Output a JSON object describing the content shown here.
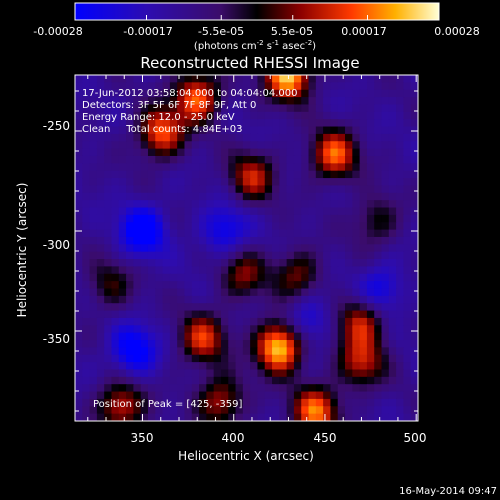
{
  "chart_data": {
    "type": "heatmap",
    "title": "Reconstructed RHESSI Image",
    "xlabel": "Heliocentric X (arcsec)",
    "ylabel": "Heliocentric Y (arcsec)",
    "xlim": [
      313,
      501
    ],
    "ylim": [
      -395,
      -222
    ],
    "xticks": [
      350,
      400,
      450,
      500
    ],
    "yticks": [
      -250,
      -300,
      -350
    ],
    "colorbar": {
      "ticks": [
        "-0.00028",
        "-0.00017",
        "-5.5e-05",
        "5.5e-05",
        "0.00017",
        "0.00028"
      ],
      "units_prefix": "(photons cm",
      "units_exp1": "-2",
      "units_mid": " s",
      "units_exp2": "-1",
      "units_mid2": " asec",
      "units_exp3": "-2",
      "units_suffix": ")",
      "range": [
        -0.00028,
        0.00028
      ]
    },
    "info": {
      "time_range": "17-Jun-2012 03:58:04.000 to 04:04:04.000",
      "detectors": "Detectors: 3F 5F 6F 7F 8F 9F, Att 0",
      "energy": "Energy Range: 12.0 - 25.0 keV",
      "clean": "Clean     Total counts: 4.84E+03",
      "peak": "Position of Peak = [425, -359]"
    },
    "peak": {
      "x": 425,
      "y": -359
    },
    "sources": [
      {
        "x": 425,
        "y": -358,
        "amp": 1.0
      },
      {
        "x": 430,
        "y": -222,
        "amp": 0.95
      },
      {
        "x": 360,
        "y": -251,
        "amp": 0.72
      },
      {
        "x": 380,
        "y": -233,
        "amp": 0.75
      },
      {
        "x": 455,
        "y": -262,
        "amp": 0.72
      },
      {
        "x": 338,
        "y": -388,
        "amp": 0.62
      },
      {
        "x": 445,
        "y": -390,
        "amp": 0.75
      },
      {
        "x": 470,
        "y": -345,
        "amp": 0.6
      },
      {
        "x": 470,
        "y": -366,
        "amp": 0.55
      },
      {
        "x": 383,
        "y": -354,
        "amp": 0.62
      },
      {
        "x": 405,
        "y": -322,
        "amp": 0.45
      },
      {
        "x": 435,
        "y": -322,
        "amp": 0.45
      },
      {
        "x": 410,
        "y": -273,
        "amp": 0.55
      },
      {
        "x": 393,
        "y": -385,
        "amp": 0.55
      },
      {
        "x": 478,
        "y": -295,
        "amp": 0.35
      },
      {
        "x": 332,
        "y": -327,
        "amp": 0.35
      },
      {
        "x": 345,
        "y": -360,
        "amp": -0.5
      },
      {
        "x": 350,
        "y": -300,
        "amp": -0.55
      },
      {
        "x": 395,
        "y": -300,
        "amp": -0.4
      },
      {
        "x": 440,
        "y": -345,
        "amp": -0.35
      },
      {
        "x": 480,
        "y": -330,
        "amp": -0.4
      }
    ]
  },
  "footer": {
    "date": "16-May-2014 09:47"
  }
}
